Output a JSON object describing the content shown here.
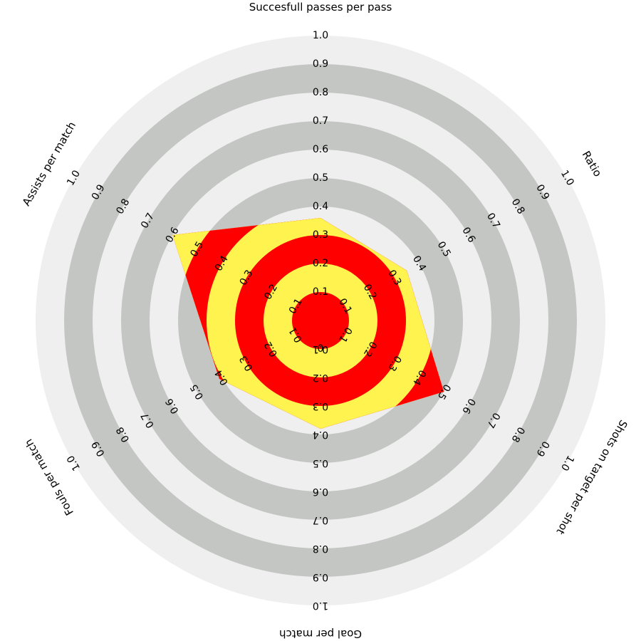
{
  "chart_data": {
    "type": "radar",
    "title": "",
    "range": [
      0,
      1
    ],
    "ticks": [
      "0.1",
      "0.2",
      "0.3",
      "0.4",
      "0.5",
      "0.6",
      "0.7",
      "0.8",
      "0.9",
      "1.0"
    ],
    "center_tick": "0",
    "axes": [
      {
        "label": "Succesfull passes per pass",
        "value": 0.36
      },
      {
        "label": "Ratio",
        "value": 0.35
      },
      {
        "label": "Shots on target per shot",
        "value": 0.5
      },
      {
        "label": "Goal per match",
        "value": 0.38
      },
      {
        "label": "Fouls per match",
        "value": 0.41
      },
      {
        "label": "Assists per match",
        "value": 0.6
      }
    ],
    "colors": {
      "ring_dark": "#c4c6c4",
      "ring_light": "#efefef",
      "fill_red": "#ff0000",
      "fill_yellow": "#fff34f"
    }
  }
}
